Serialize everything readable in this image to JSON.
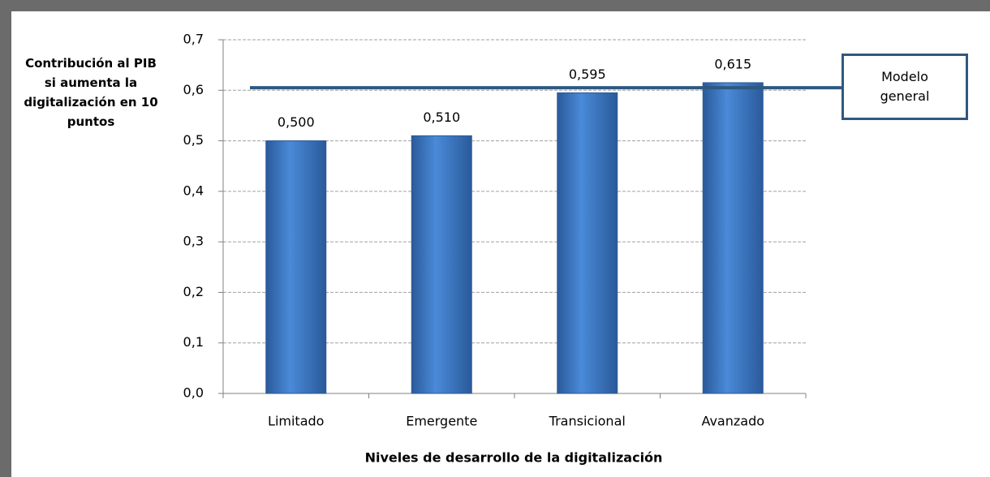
{
  "chart_data": {
    "type": "bar",
    "ylabel": "Contribución al PIB si aumenta la digitalización en 10 puntos",
    "xlabel": "Niveles de desarrollo de la digitalización",
    "categories": [
      "Limitado",
      "Emergente",
      "Transicional",
      "Avanzado"
    ],
    "values": [
      0.5,
      0.51,
      0.595,
      0.615
    ],
    "value_labels": [
      "0,500",
      "0,510",
      "0,595",
      "0,615"
    ],
    "color": "#3a78c8",
    "ylim": [
      0,
      0.7
    ],
    "yticks": [
      {
        "value": 0,
        "label": "0,0"
      },
      {
        "value": 0.1,
        "label": "0,1"
      },
      {
        "value": 0.2,
        "label": "0,2"
      },
      {
        "value": 0.3,
        "label": "0,3"
      },
      {
        "value": 0.4,
        "label": "0,4"
      },
      {
        "value": 0.5,
        "label": "0,5"
      },
      {
        "value": 0.6,
        "label": "0,6"
      },
      {
        "value": 0.7,
        "label": "0,7"
      }
    ],
    "grid": true,
    "reference_line": {
      "value": 0.605,
      "label": "Modelo general",
      "color": "#2f5880"
    }
  }
}
